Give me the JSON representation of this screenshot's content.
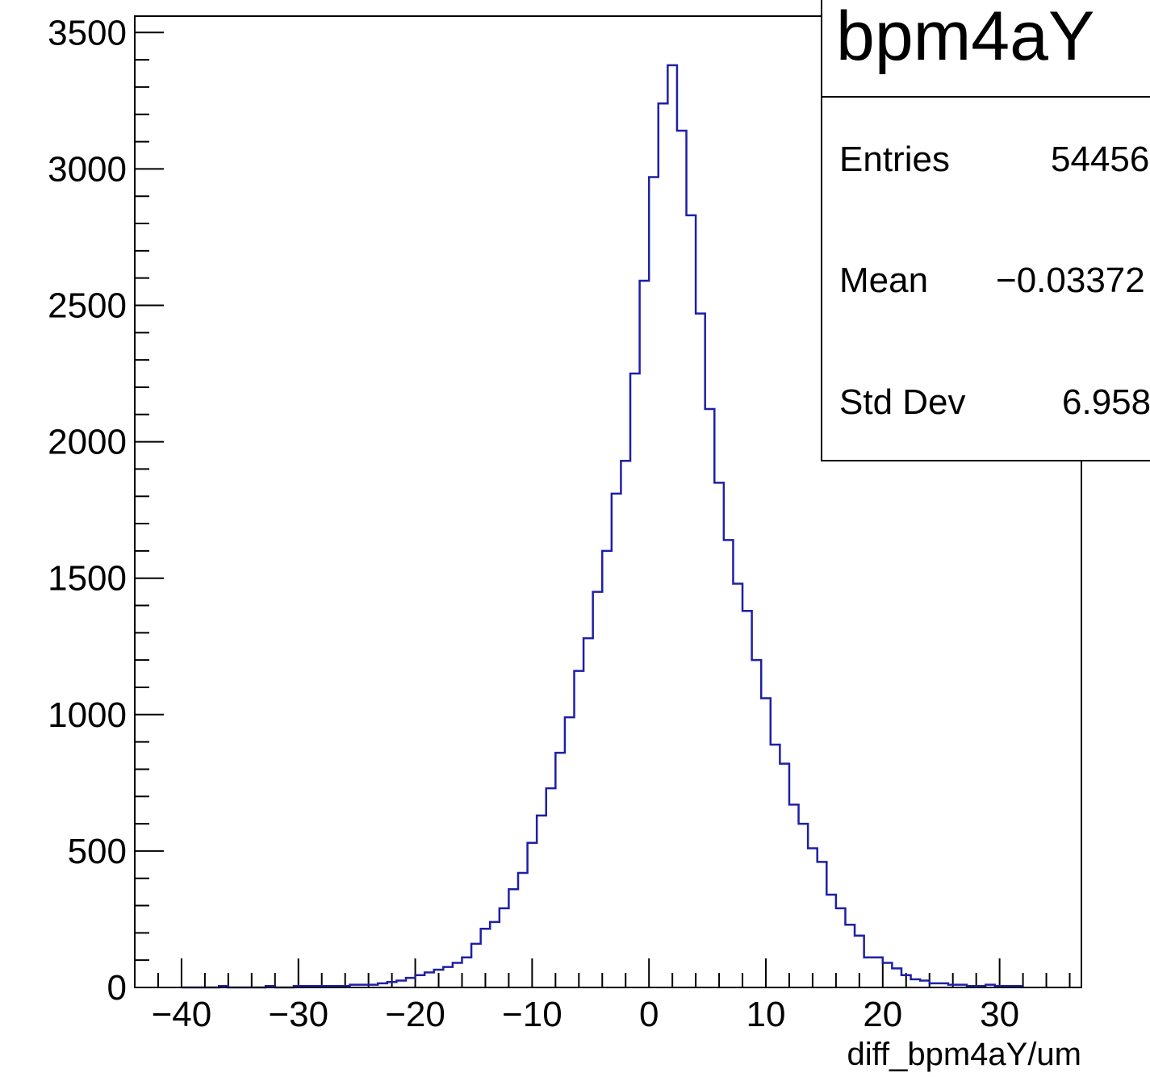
{
  "chart_data": {
    "type": "bar",
    "histogram": true,
    "xlabel": "diff_bpm4aY/um",
    "ylabel": "",
    "xlim": [
      -44,
      37
    ],
    "ylim": [
      0,
      3560
    ],
    "x_ticks": [
      -40,
      -30,
      -20,
      -10,
      0,
      10,
      20,
      30
    ],
    "x_tick_labels": [
      "−40",
      "−30",
      "−20",
      "−10",
      "0",
      "10",
      "20",
      "30"
    ],
    "y_ticks": [
      0,
      500,
      1000,
      1500,
      2000,
      2500,
      3000,
      3500
    ],
    "y_tick_labels": [
      "0",
      "500",
      "1000",
      "1500",
      "2000",
      "2500",
      "3000",
      "3500"
    ],
    "line_color": "#1f1fa6",
    "series": [
      {
        "bin_low_edges": [
          -40.0,
          -39.2,
          -38.4,
          -37.6,
          -36.8,
          -36.0,
          -35.2,
          -34.4,
          -33.6,
          -32.8,
          -32.0,
          -31.2,
          -30.4,
          -29.6,
          -28.8,
          -28.0,
          -27.2,
          -26.4,
          -25.6,
          -24.8,
          -24.0,
          -23.2,
          -22.4,
          -21.6,
          -20.8,
          -20.0,
          -19.2,
          -18.4,
          -17.6,
          -16.8,
          -16.0,
          -15.2,
          -14.4,
          -13.6,
          -12.8,
          -12.0,
          -11.2,
          -10.4,
          -9.6,
          -8.8,
          -8.0,
          -7.2,
          -6.4,
          -5.6,
          -4.8,
          -4.0,
          -3.2,
          -2.4,
          -1.6,
          -0.8,
          0.0,
          0.8,
          1.6,
          2.4,
          3.2,
          4.0,
          4.8,
          5.6,
          6.4,
          7.2,
          8.0,
          8.8,
          9.6,
          10.4,
          11.2,
          12.0,
          12.8,
          13.6,
          14.4,
          15.2,
          16.0,
          16.8,
          17.6,
          18.4,
          19.2,
          20.0,
          20.8,
          21.6,
          22.4,
          23.2,
          24.0,
          24.8,
          25.6,
          26.4,
          27.2,
          28.0,
          28.8,
          29.6,
          30.4,
          31.2
        ],
        "bin_width": 0.8,
        "values": [
          0,
          0,
          0,
          0,
          5,
          0,
          0,
          0,
          0,
          5,
          0,
          0,
          5,
          5,
          5,
          5,
          5,
          5,
          10,
          10,
          10,
          15,
          20,
          25,
          35,
          45,
          55,
          65,
          75,
          90,
          110,
          160,
          215,
          240,
          290,
          360,
          420,
          530,
          630,
          730,
          860,
          990,
          1160,
          1280,
          1450,
          1600,
          1810,
          1930,
          2250,
          2590,
          2970,
          3240,
          3380,
          3140,
          2830,
          2470,
          2120,
          1850,
          1640,
          1480,
          1380,
          1200,
          1060,
          890,
          820,
          670,
          600,
          510,
          460,
          340,
          290,
          230,
          190,
          110,
          110,
          90,
          70,
          45,
          30,
          25,
          15,
          15,
          10,
          10,
          5,
          5,
          10,
          5,
          5,
          5
        ]
      }
    ]
  },
  "stats_box": {
    "title": "bpm4aY",
    "rows": [
      {
        "label": "Entries",
        "value": "54456"
      },
      {
        "label": "Mean",
        "value": "−0.03372"
      },
      {
        "label": "Std Dev",
        "value": "6.958"
      }
    ]
  }
}
